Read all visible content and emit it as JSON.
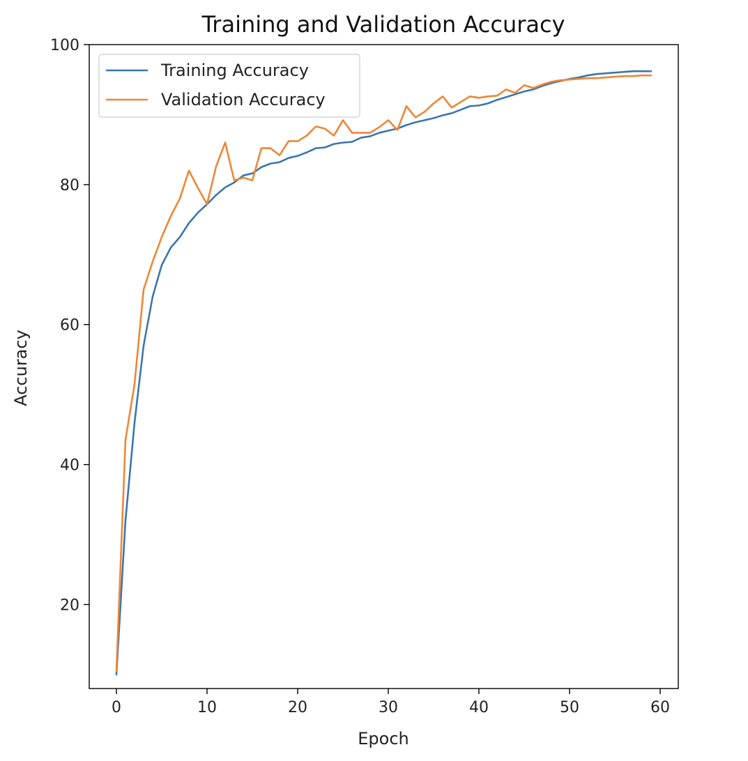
{
  "chart_data": {
    "type": "line",
    "title": "Training and Validation Accuracy",
    "xlabel": "Epoch",
    "ylabel": "Accuracy",
    "xlim": [
      -3,
      62
    ],
    "ylim": [
      8,
      100
    ],
    "xticks": [
      0,
      10,
      20,
      30,
      40,
      50,
      60
    ],
    "yticks": [
      20,
      40,
      60,
      80,
      100
    ],
    "grid": false,
    "legend_position": "top-left",
    "x": [
      0,
      1,
      2,
      3,
      4,
      5,
      6,
      7,
      8,
      9,
      10,
      11,
      12,
      13,
      14,
      15,
      16,
      17,
      18,
      19,
      20,
      21,
      22,
      23,
      24,
      25,
      26,
      27,
      28,
      29,
      30,
      31,
      32,
      33,
      34,
      35,
      36,
      37,
      38,
      39,
      40,
      41,
      42,
      43,
      44,
      45,
      46,
      47,
      48,
      49,
      50,
      51,
      52,
      53,
      54,
      55,
      56,
      57,
      58,
      59
    ],
    "series": [
      {
        "name": "Training Accuracy",
        "color": "#3b75af",
        "values": [
          10.0,
          32.0,
          46.0,
          57.0,
          64.0,
          68.5,
          71.0,
          72.5,
          74.5,
          76.0,
          77.2,
          78.5,
          79.6,
          80.3,
          81.3,
          81.6,
          82.5,
          83.0,
          83.2,
          83.8,
          84.1,
          84.6,
          85.2,
          85.3,
          85.8,
          86.0,
          86.1,
          86.7,
          86.9,
          87.4,
          87.7,
          88.0,
          88.5,
          88.9,
          89.2,
          89.5,
          89.9,
          90.2,
          90.7,
          91.2,
          91.3,
          91.6,
          92.1,
          92.5,
          92.9,
          93.3,
          93.6,
          94.1,
          94.5,
          94.8,
          95.1,
          95.3,
          95.6,
          95.8,
          95.9,
          96.0,
          96.1,
          96.2,
          96.2,
          96.2
        ]
      },
      {
        "name": "Validation Accuracy",
        "color": "#ef8636",
        "values": [
          10.5,
          43.5,
          51.5,
          65.0,
          69.0,
          72.5,
          75.5,
          78.0,
          82.0,
          79.5,
          77.2,
          82.6,
          86.0,
          80.6,
          81.0,
          80.6,
          85.2,
          85.2,
          84.2,
          86.2,
          86.2,
          87.0,
          88.3,
          88.0,
          87.0,
          89.2,
          87.4,
          87.4,
          87.4,
          88.2,
          89.2,
          87.8,
          91.2,
          89.6,
          90.4,
          91.6,
          92.6,
          91.0,
          91.8,
          92.6,
          92.4,
          92.6,
          92.7,
          93.6,
          93.1,
          94.2,
          93.8,
          94.3,
          94.7,
          94.9,
          95.0,
          95.1,
          95.2,
          95.2,
          95.3,
          95.4,
          95.5,
          95.5,
          95.6,
          95.6
        ]
      }
    ]
  }
}
